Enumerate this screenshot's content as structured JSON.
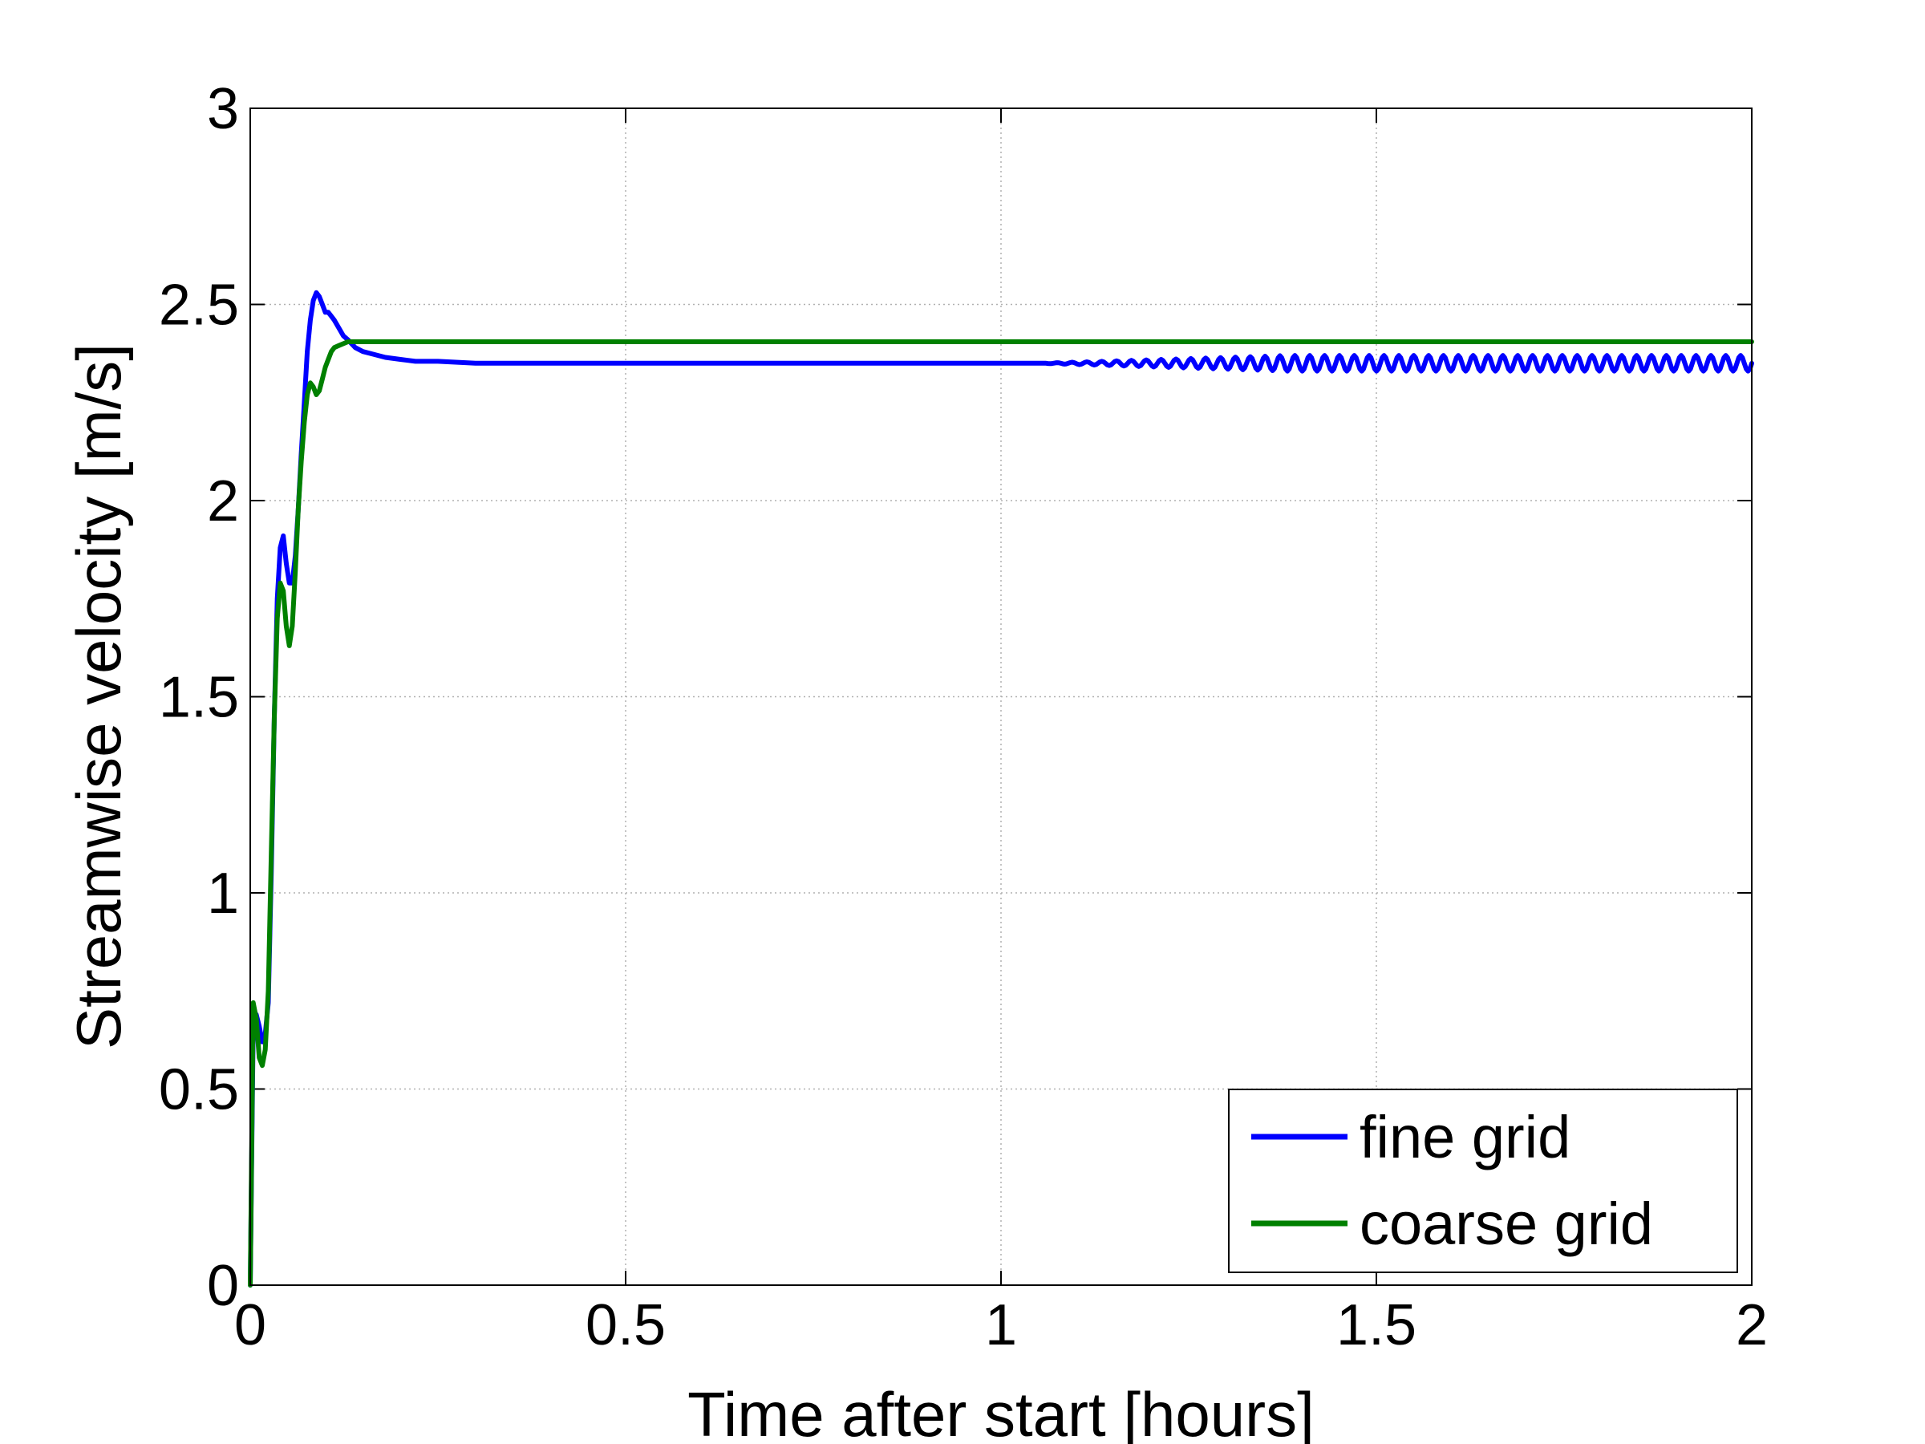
{
  "chart_data": {
    "type": "line",
    "title": "",
    "xlabel": "Time after start [hours]",
    "ylabel": "Streamwise velocity [m/s]",
    "xlim": [
      0,
      2
    ],
    "ylim": [
      0,
      3
    ],
    "xticks": [
      0,
      0.5,
      1,
      1.5,
      2
    ],
    "xtick_labels": [
      "0",
      "0.5",
      "1",
      "1.5",
      "2"
    ],
    "yticks": [
      0,
      0.5,
      1,
      1.5,
      2,
      2.5,
      3
    ],
    "ytick_labels": [
      "0",
      "0.5",
      "1",
      "1.5",
      "2",
      "2.5",
      "3"
    ],
    "grid": true,
    "legend_position": "bottom-right",
    "series": [
      {
        "name": "fine grid",
        "color": "#0000ff",
        "x": [
          0,
          0.004,
          0.008,
          0.012,
          0.016,
          0.02,
          0.024,
          0.028,
          0.032,
          0.036,
          0.04,
          0.044,
          0.048,
          0.052,
          0.056,
          0.06,
          0.064,
          0.068,
          0.072,
          0.076,
          0.08,
          0.084,
          0.088,
          0.092,
          0.096,
          0.1,
          0.104,
          0.108,
          0.112,
          0.118,
          0.124,
          0.13,
          0.14,
          0.15,
          0.16,
          0.18,
          0.2,
          0.22,
          0.25,
          0.3,
          0.4,
          0.6,
          0.8,
          1.0,
          1.05
        ],
        "y": [
          0.0,
          0.66,
          0.69,
          0.66,
          0.62,
          0.64,
          0.72,
          1.05,
          1.45,
          1.75,
          1.88,
          1.91,
          1.84,
          1.79,
          1.79,
          1.86,
          1.98,
          2.12,
          2.25,
          2.38,
          2.46,
          2.51,
          2.53,
          2.52,
          2.5,
          2.48,
          2.48,
          2.47,
          2.46,
          2.44,
          2.42,
          2.41,
          2.39,
          2.38,
          2.375,
          2.365,
          2.36,
          2.355,
          2.355,
          2.35,
          2.35,
          2.35,
          2.35,
          2.35,
          2.35
        ],
        "oscillation": {
          "from_x": 1.05,
          "to_x": 2.0,
          "mean": 2.35,
          "amplitude": 0.02,
          "cycles": 48
        }
      },
      {
        "name": "coarse grid",
        "color": "#008000",
        "x": [
          0,
          0.004,
          0.008,
          0.012,
          0.016,
          0.02,
          0.024,
          0.028,
          0.032,
          0.036,
          0.04,
          0.044,
          0.048,
          0.052,
          0.056,
          0.06,
          0.064,
          0.068,
          0.072,
          0.076,
          0.08,
          0.084,
          0.088,
          0.092,
          0.096,
          0.1,
          0.104,
          0.108,
          0.112,
          0.118,
          0.124,
          0.13,
          0.14,
          0.15,
          0.16,
          0.18,
          0.2,
          0.25,
          0.3,
          0.5,
          1.0,
          1.5,
          2.0
        ],
        "y": [
          0.0,
          0.72,
          0.68,
          0.58,
          0.56,
          0.6,
          0.75,
          1.1,
          1.45,
          1.7,
          1.79,
          1.77,
          1.68,
          1.63,
          1.68,
          1.82,
          1.98,
          2.1,
          2.2,
          2.27,
          2.3,
          2.29,
          2.27,
          2.28,
          2.31,
          2.34,
          2.36,
          2.38,
          2.39,
          2.395,
          2.4,
          2.405,
          2.405,
          2.405,
          2.405,
          2.405,
          2.405,
          2.405,
          2.405,
          2.405,
          2.405,
          2.405,
          2.405
        ]
      }
    ]
  }
}
